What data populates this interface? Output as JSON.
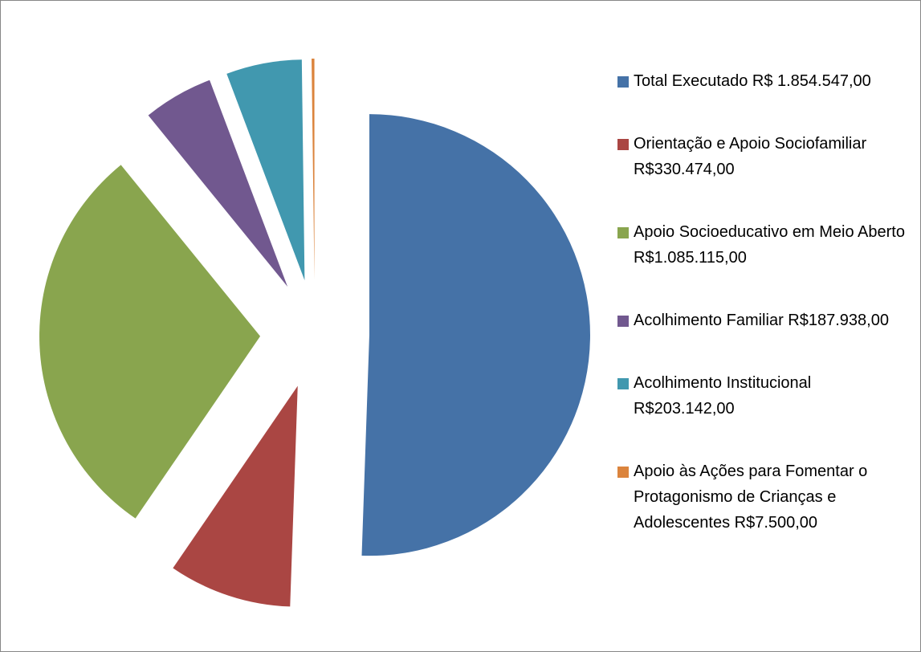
{
  "chart_data": {
    "type": "pie",
    "categories": [
      "Total Executado R$ 1.854.547,00",
      "Orientação e Apoio Sociofamiliar R$330.474,00",
      "Apoio Socioeducativo em Meio Aberto R$1.085.115,00",
      "Acolhimento Familiar R$187.938,00",
      "Acolhimento Institucional R$203.142,00",
      "Apoio às Ações para Fomentar o Protagonismo de Crianças e Adolescentes R$7.500,00"
    ],
    "values": [
      1854547,
      330474,
      1085115,
      187938,
      203142,
      7500
    ],
    "colors": [
      "#4572a7",
      "#aa4643",
      "#89a54e",
      "#71588f",
      "#4198af",
      "#db843d"
    ],
    "legend": "right"
  }
}
